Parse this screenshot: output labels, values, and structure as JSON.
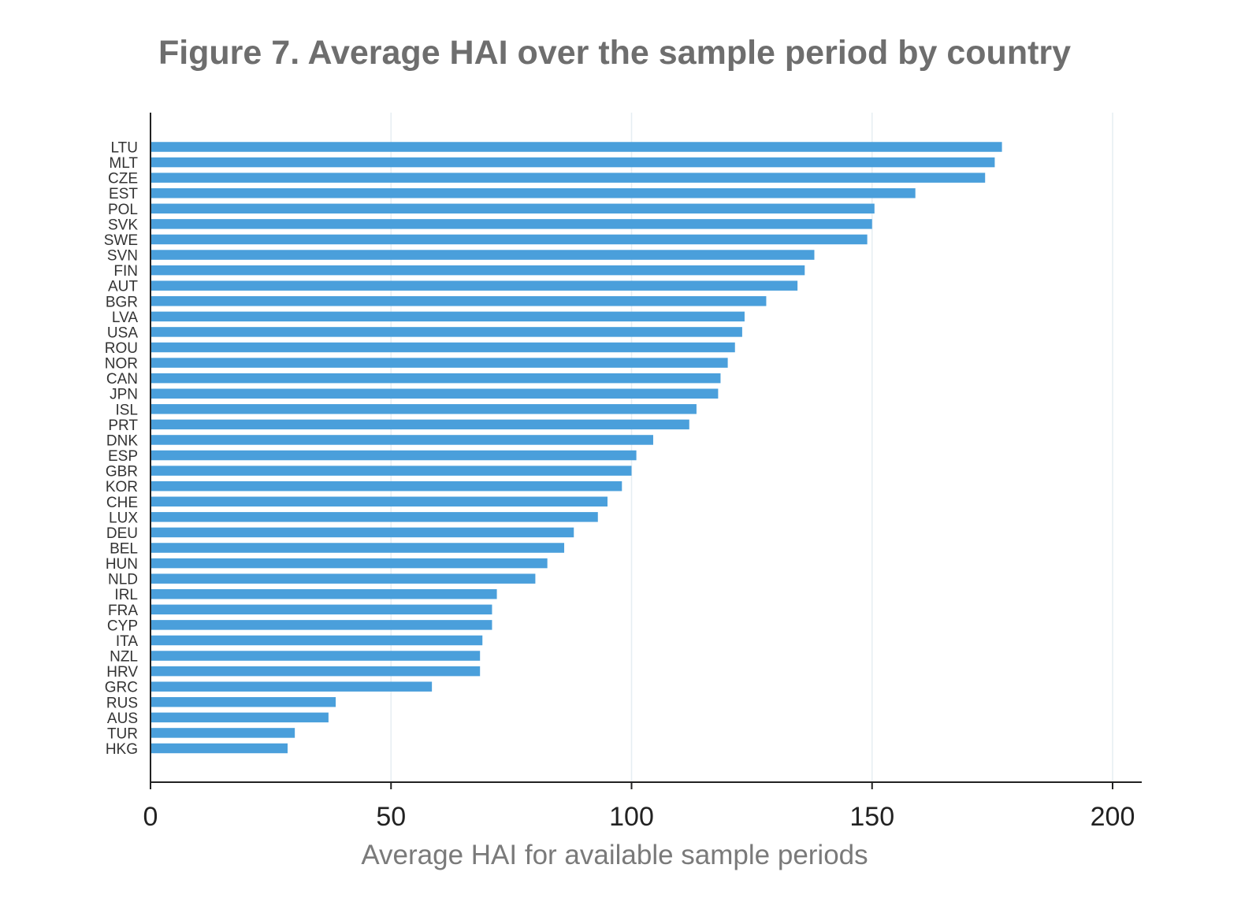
{
  "chart_data": {
    "type": "bar",
    "orientation": "horizontal",
    "title": "Figure 7. Average HAI over the sample period by country",
    "xlabel": "Average HAI for available sample periods",
    "ylabel": "",
    "xlim": [
      0,
      200
    ],
    "xticks": [
      0,
      50,
      100,
      150,
      200
    ],
    "grid": true,
    "bar_color": "#4a9fdb",
    "categories": [
      "LTU",
      "MLT",
      "CZE",
      "EST",
      "POL",
      "SVK",
      "SWE",
      "SVN",
      "FIN",
      "AUT",
      "BGR",
      "LVA",
      "USA",
      "ROU",
      "NOR",
      "CAN",
      "JPN",
      "ISL",
      "PRT",
      "DNK",
      "ESP",
      "GBR",
      "KOR",
      "CHE",
      "LUX",
      "DEU",
      "BEL",
      "HUN",
      "NLD",
      "IRL",
      "FRA",
      "CYP",
      "ITA",
      "NZL",
      "HRV",
      "GRC",
      "RUS",
      "AUS",
      "TUR",
      "HKG"
    ],
    "values": [
      177,
      175.5,
      173.5,
      159,
      150.5,
      150,
      149,
      138,
      136,
      134.5,
      128,
      123.5,
      123,
      121.5,
      120,
      118.5,
      118,
      113.5,
      112,
      104.5,
      101,
      100,
      98,
      95,
      93,
      88,
      86,
      82.5,
      80,
      72,
      71,
      71,
      69,
      68.5,
      68.5,
      58.5,
      38.5,
      37,
      30,
      28.5
    ]
  }
}
